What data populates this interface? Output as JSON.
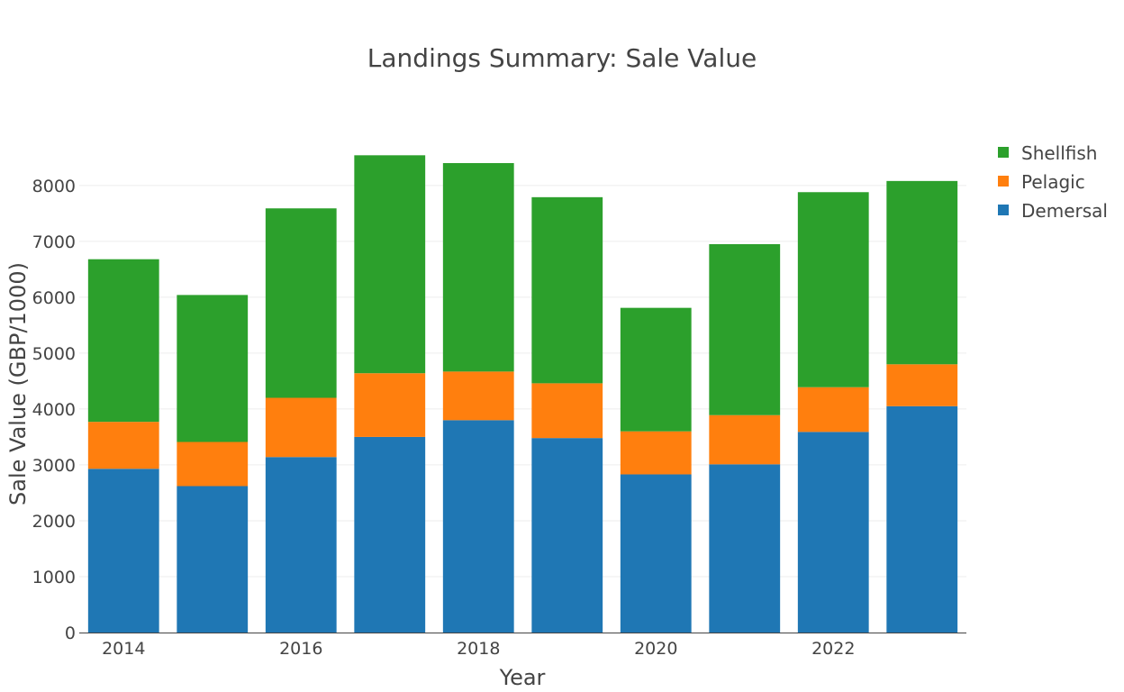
{
  "chart_data": {
    "type": "bar",
    "stacked": true,
    "title": "Landings Summary: Sale Value",
    "xlabel": "Year",
    "ylabel": "Sale Value (GBP/1000)",
    "categories": [
      2014,
      2015,
      2016,
      2017,
      2018,
      2019,
      2020,
      2021,
      2022,
      2023
    ],
    "x_tick_labels": [
      "2014",
      "2016",
      "2018",
      "2020",
      "2022"
    ],
    "y_ticks": [
      0,
      1000,
      2000,
      3000,
      4000,
      5000,
      6000,
      7000,
      8000
    ],
    "ylim": [
      0,
      8900
    ],
    "grid": true,
    "legend_position": "top-right",
    "series": [
      {
        "name": "Demersal",
        "color": "#1f77b4",
        "values": [
          2930,
          2620,
          3140,
          3500,
          3800,
          3480,
          2830,
          3010,
          3590,
          4050
        ]
      },
      {
        "name": "Pelagic",
        "color": "#ff7f0e",
        "values": [
          840,
          790,
          1060,
          1140,
          870,
          980,
          770,
          880,
          800,
          750
        ]
      },
      {
        "name": "Shellfish",
        "color": "#2ca02c",
        "values": [
          2910,
          2630,
          3390,
          3900,
          3730,
          3330,
          2210,
          3060,
          3490,
          3280
        ]
      }
    ],
    "legend_order": [
      "Shellfish",
      "Pelagic",
      "Demersal"
    ]
  }
}
